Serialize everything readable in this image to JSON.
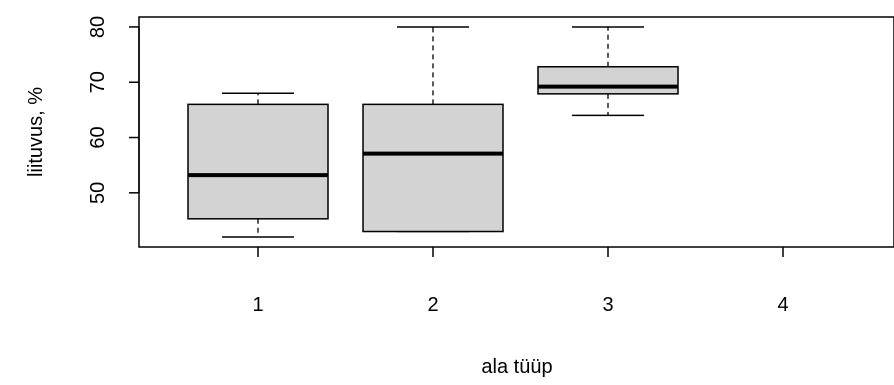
{
  "chart_data": {
    "type": "boxplot",
    "title": "",
    "xlabel": "ala tüüp",
    "ylabel": "liituvus, %",
    "categories": [
      "1",
      "2",
      "3",
      "4"
    ],
    "yticks": [
      50,
      60,
      70,
      80
    ],
    "ylim": [
      40.2,
      81.8
    ],
    "grid": false,
    "legend": "none",
    "box_fill": "#d3d3d3",
    "line_color": "#000000",
    "boxes": [
      {
        "category": "1",
        "whisker_low": 42,
        "q1": 45.3,
        "median": 53.2,
        "q3": 66,
        "whisker_high": 68
      },
      {
        "category": "2",
        "whisker_low": 43,
        "q1": 43,
        "median": 57.1,
        "q3": 66,
        "whisker_high": 80
      },
      {
        "category": "3",
        "whisker_low": 64,
        "q1": 67.9,
        "median": 69.2,
        "q3": 72.8,
        "whisker_high": 80
      }
    ]
  }
}
